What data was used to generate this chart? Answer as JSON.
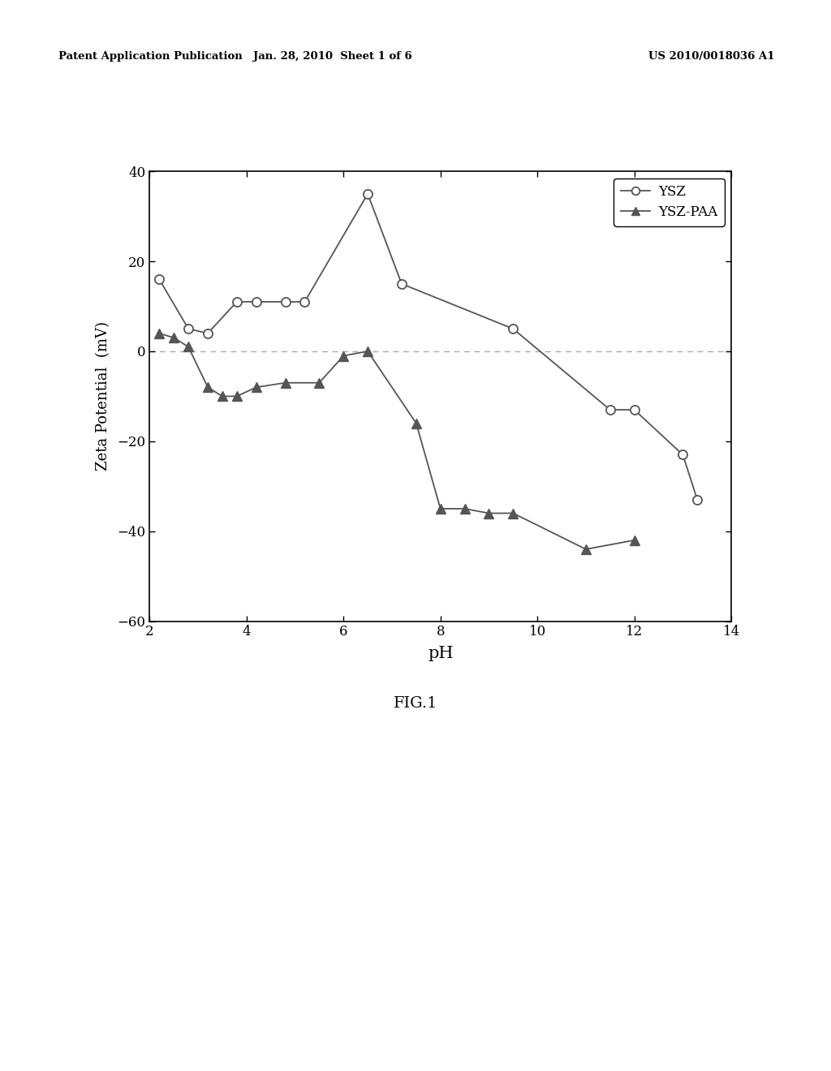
{
  "ysz_x": [
    2.2,
    2.8,
    3.2,
    3.8,
    4.2,
    4.8,
    5.2,
    6.5,
    7.2,
    9.5,
    11.5,
    12.0,
    13.0,
    13.3
  ],
  "ysz_y": [
    16,
    5,
    4,
    11,
    11,
    11,
    11,
    35,
    15,
    5,
    -13,
    -13,
    -23,
    -33
  ],
  "yszpaa_x": [
    2.2,
    2.5,
    2.8,
    3.2,
    3.5,
    3.8,
    4.2,
    4.8,
    5.5,
    6.0,
    6.5,
    7.5,
    8.0,
    8.5,
    9.0,
    9.5,
    11.0,
    12.0
  ],
  "yszpaa_y": [
    4,
    3,
    1,
    -8,
    -10,
    -10,
    -8,
    -7,
    -7,
    -1,
    0,
    -16,
    -35,
    -35,
    -36,
    -36,
    -44,
    -42
  ],
  "xlabel": "pH",
  "ylabel": "Zeta Potential  (mV)",
  "xlim": [
    2,
    14
  ],
  "ylim": [
    -60,
    40
  ],
  "xticks": [
    2,
    4,
    6,
    8,
    10,
    12,
    14
  ],
  "yticks": [
    -60,
    -40,
    -20,
    0,
    20,
    40
  ],
  "legend_ysz": "YSZ",
  "legend_yszpaa": "YSZ-PAA",
  "line_color": "#555555",
  "dashed_zero_color": "#aaaaaa",
  "fig_label": "FIG.1",
  "header_left": "Patent Application Publication",
  "header_center": "Jan. 28, 2010  Sheet 1 of 6",
  "header_right": "US 2010/0018036 A1"
}
